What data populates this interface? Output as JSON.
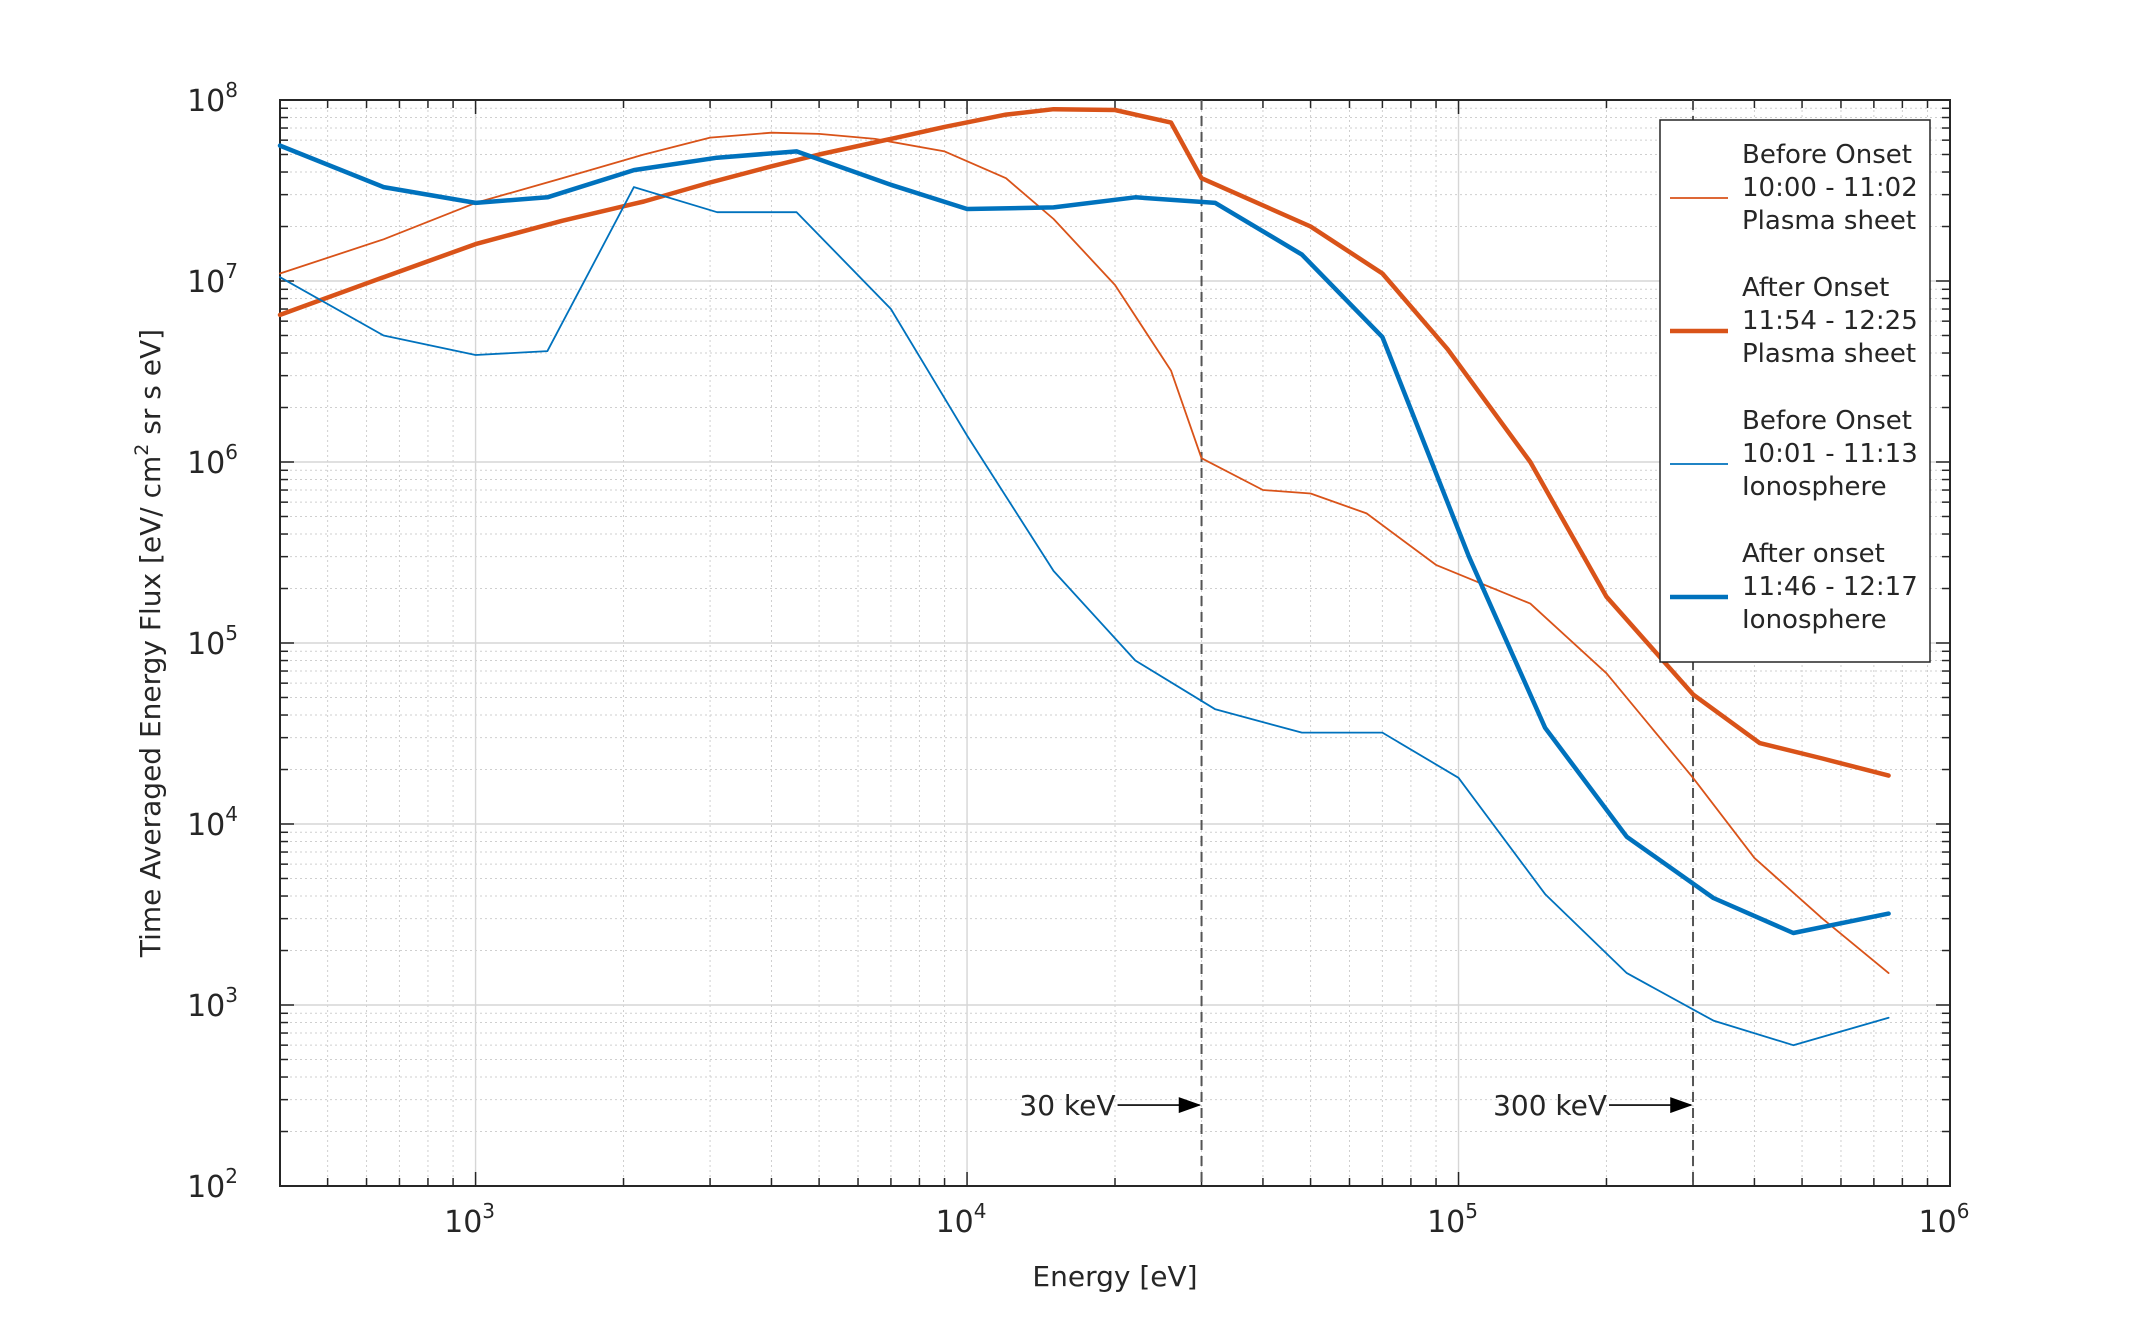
{
  "chart_data": {
    "type": "line",
    "title": "",
    "xlabel": "Energy [eV]",
    "ylabel": {
      "pre": "Time Averaged Energy Flux [eV/ cm",
      "sup": "2",
      "post": " sr s eV]"
    },
    "x_scale": "log",
    "y_scale": "log",
    "xlim": [
      400,
      1000000
    ],
    "ylim": [
      100,
      100000000
    ],
    "x_ticks": [
      {
        "value": 1000,
        "base": "10",
        "exp": "3"
      },
      {
        "value": 10000,
        "base": "10",
        "exp": "4"
      },
      {
        "value": 100000,
        "base": "10",
        "exp": "5"
      },
      {
        "value": 1000000,
        "base": "10",
        "exp": "6"
      }
    ],
    "y_ticks": [
      {
        "value": 100,
        "base": "10",
        "exp": "2"
      },
      {
        "value": 1000,
        "base": "10",
        "exp": "3"
      },
      {
        "value": 10000,
        "base": "10",
        "exp": "4"
      },
      {
        "value": 100000,
        "base": "10",
        "exp": "5"
      },
      {
        "value": 1000000,
        "base": "10",
        "exp": "6"
      },
      {
        "value": 10000000,
        "base": "10",
        "exp": "7"
      },
      {
        "value": 100000000,
        "base": "10",
        "exp": "8"
      }
    ],
    "grid": true,
    "minor_grid": true,
    "legend_position": "top-right",
    "series": [
      {
        "name": [
          "Before Onset",
          "10:00 - 11:02",
          "Plasma sheet"
        ],
        "color": "#D95319",
        "width": "thin",
        "points": [
          [
            400,
            11000000
          ],
          [
            650,
            17000000
          ],
          [
            1000,
            27000000
          ],
          [
            1500,
            37000000
          ],
          [
            2200,
            50000000
          ],
          [
            3000,
            62000000
          ],
          [
            4000,
            66000000
          ],
          [
            5000,
            65000000
          ],
          [
            6500,
            61000000
          ],
          [
            9000,
            52000000
          ],
          [
            12000,
            37000000
          ],
          [
            15000,
            22000000
          ],
          [
            20000,
            9500000
          ],
          [
            26000,
            3200000
          ],
          [
            30000,
            1050000
          ],
          [
            40000,
            700000
          ],
          [
            50000,
            670000
          ],
          [
            65000,
            520000
          ],
          [
            90000,
            270000
          ],
          [
            140000,
            165000
          ],
          [
            200000,
            68000
          ],
          [
            300000,
            18000
          ],
          [
            400000,
            6500
          ],
          [
            550000,
            3000
          ],
          [
            750000,
            1500
          ]
        ]
      },
      {
        "name": [
          "After Onset",
          "11:54 - 12:25",
          "Plasma sheet"
        ],
        "color": "#D95319",
        "width": "thick",
        "points": [
          [
            400,
            6500000
          ],
          [
            650,
            10500000
          ],
          [
            1000,
            16000000
          ],
          [
            1500,
            21500000
          ],
          [
            2200,
            27500000
          ],
          [
            3000,
            35000000
          ],
          [
            4000,
            43000000
          ],
          [
            5000,
            50000000
          ],
          [
            7000,
            61000000
          ],
          [
            9000,
            71000000
          ],
          [
            12000,
            83000000
          ],
          [
            15000,
            89000000
          ],
          [
            20000,
            88000000
          ],
          [
            26000,
            75000000
          ],
          [
            30000,
            37000000
          ],
          [
            50000,
            20000000
          ],
          [
            70000,
            11000000
          ],
          [
            95000,
            4200000
          ],
          [
            140000,
            1000000
          ],
          [
            200000,
            180000
          ],
          [
            300000,
            52000
          ],
          [
            410000,
            28000
          ],
          [
            550000,
            23000
          ],
          [
            750000,
            18500
          ]
        ]
      },
      {
        "name": [
          "Before Onset",
          "10:01 - 11:13",
          "Ionosphere"
        ],
        "color": "#0072BD",
        "width": "thin",
        "points": [
          [
            400,
            10500000
          ],
          [
            650,
            5000000
          ],
          [
            1000,
            3900000
          ],
          [
            1400,
            4100000
          ],
          [
            2100,
            33000000
          ],
          [
            3100,
            24000000
          ],
          [
            4500,
            24000000
          ],
          [
            7000,
            7000000
          ],
          [
            10000,
            1400000
          ],
          [
            15000,
            250000
          ],
          [
            22000,
            80000
          ],
          [
            32000,
            43000
          ],
          [
            48000,
            32000
          ],
          [
            70000,
            32000
          ],
          [
            100000,
            18000
          ],
          [
            150000,
            4100
          ],
          [
            220000,
            1500
          ],
          [
            330000,
            820
          ],
          [
            480000,
            600
          ],
          [
            750000,
            850
          ]
        ]
      },
      {
        "name": [
          "After onset",
          "11:46 - 12:17",
          "Ionosphere"
        ],
        "color": "#0072BD",
        "width": "thick",
        "points": [
          [
            400,
            56000000
          ],
          [
            650,
            33000000
          ],
          [
            1000,
            27000000
          ],
          [
            1400,
            29000000
          ],
          [
            2100,
            41000000
          ],
          [
            3100,
            48000000
          ],
          [
            4500,
            52000000
          ],
          [
            7000,
            34000000
          ],
          [
            10000,
            25000000
          ],
          [
            15000,
            25500000
          ],
          [
            22000,
            29000000
          ],
          [
            32000,
            27000000
          ],
          [
            48000,
            14000000
          ],
          [
            70000,
            4900000
          ],
          [
            105000,
            300000
          ],
          [
            150000,
            34000
          ],
          [
            220000,
            8500
          ],
          [
            330000,
            3900
          ],
          [
            480000,
            2500
          ],
          [
            750000,
            3200
          ]
        ]
      }
    ],
    "annotations": [
      {
        "text": "30 keV",
        "x": 30000
      },
      {
        "text": "300 keV",
        "x": 300000
      }
    ]
  }
}
